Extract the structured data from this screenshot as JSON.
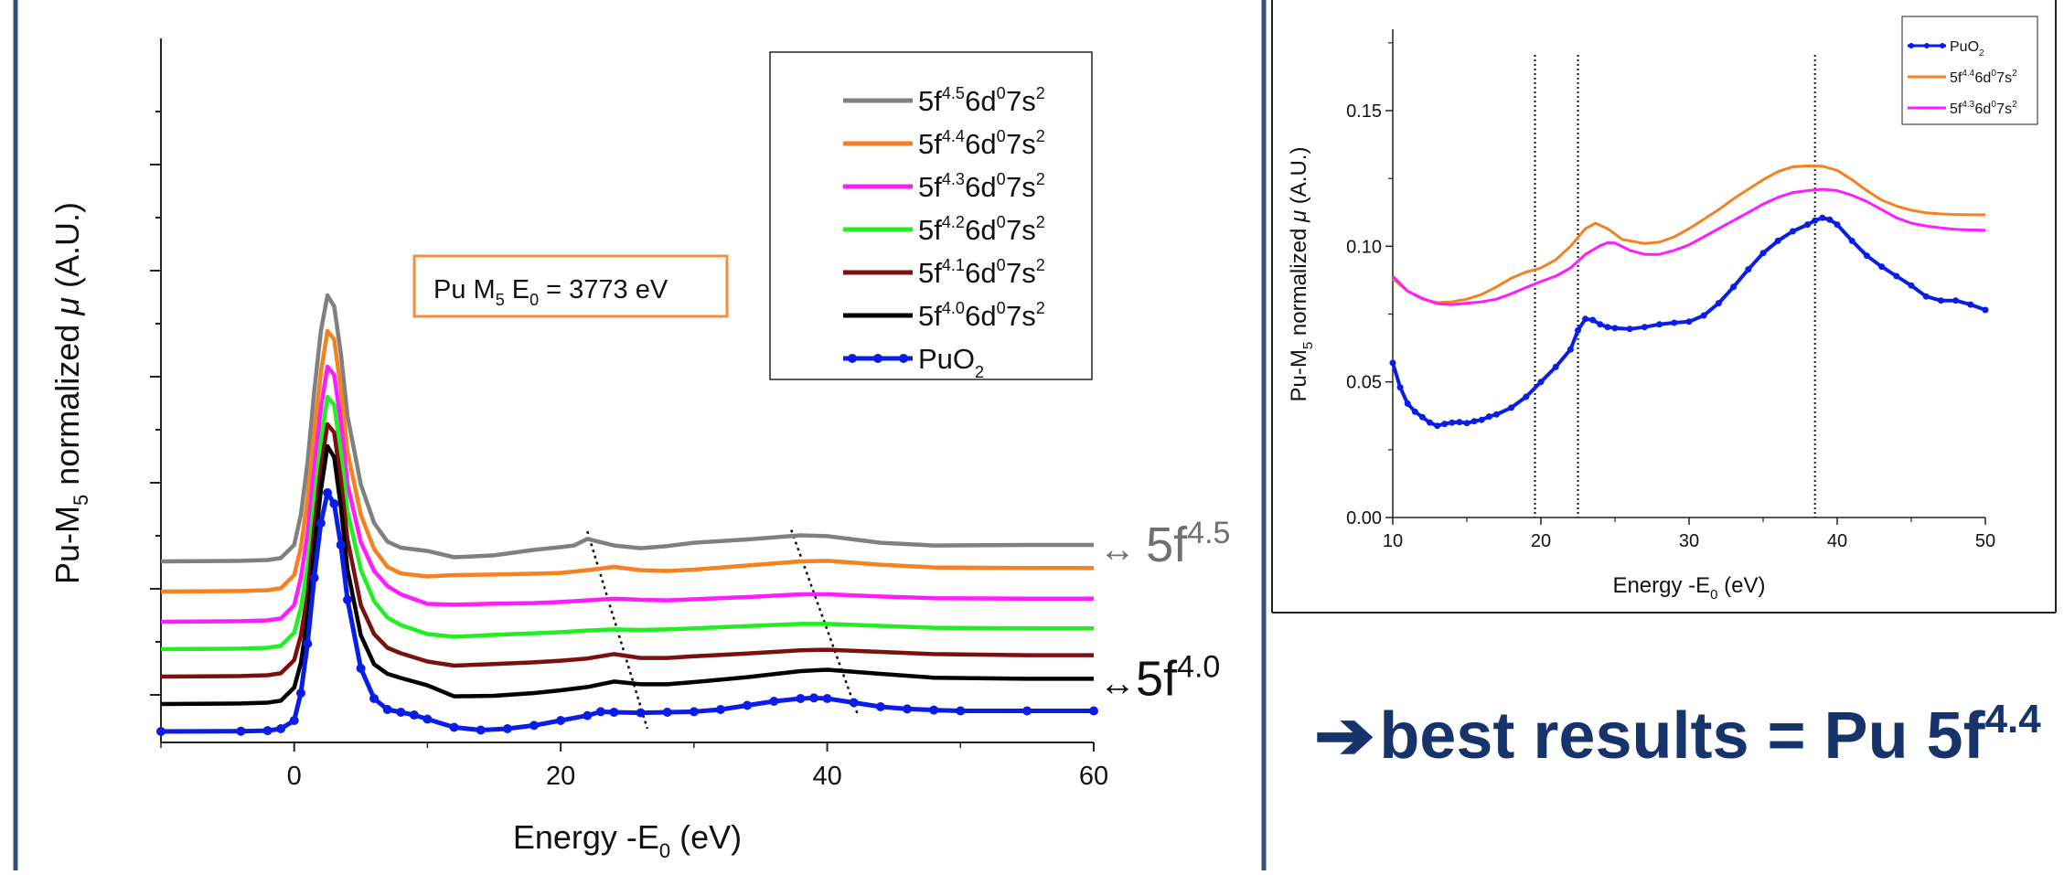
{
  "colors": {
    "frame": "#34507f",
    "accent_text": "#16336b",
    "label_box": "#f0903a"
  },
  "conclusion": {
    "arrow": "➔",
    "text": "best results = Pu 5f",
    "superscript": "4.4"
  },
  "chart_data": [
    {
      "type": "line",
      "title": "",
      "xlabel": "Energy -E0 (eV)",
      "ylabel": "Pu-M5 normalized μ (A.U.)",
      "xlim": [
        -10,
        60
      ],
      "xticks": [
        0,
        20,
        40,
        60
      ],
      "y_tick_labels": false,
      "legend_position": "top-right",
      "annotation_box": "Pu M5 E0 = 3773 eV",
      "series": [
        {
          "name": "5f4.5 6d0 7s2",
          "color": "#808080",
          "right_label": "↔ 5f4.5",
          "offset": 6.2,
          "x": [
            -10,
            -4,
            -2,
            -1,
            0,
            0.5,
            1,
            1.5,
            2,
            2.5,
            3,
            3.5,
            4,
            5,
            6,
            7,
            8,
            10,
            12,
            15,
            18,
            20,
            21,
            22,
            24,
            26,
            28,
            30,
            34,
            38,
            40,
            44,
            48,
            55,
            60
          ],
          "y": [
            0,
            0.02,
            0.05,
            0.12,
            0.6,
            1.7,
            3.6,
            6.2,
            8.4,
            9.7,
            9.3,
            7.6,
            5.3,
            2.8,
            1.4,
            0.72,
            0.5,
            0.38,
            0.15,
            0.22,
            0.42,
            0.52,
            0.58,
            0.82,
            0.58,
            0.48,
            0.56,
            0.68,
            0.8,
            0.95,
            0.92,
            0.68,
            0.58,
            0.6,
            0.6
          ]
        },
        {
          "name": "5f4.4 6d0 7s2",
          "color": "#f58220",
          "offset": 5.1,
          "x": [
            -10,
            -4,
            -2,
            -1,
            0,
            0.5,
            1,
            1.5,
            2,
            2.5,
            3,
            3.5,
            4,
            5,
            6,
            7,
            8,
            10,
            12,
            15,
            18,
            20,
            22,
            24,
            26,
            28,
            30,
            34,
            38,
            40,
            44,
            48,
            55,
            60
          ],
          "y": [
            0,
            0.02,
            0.05,
            0.12,
            0.6,
            1.6,
            3.4,
            5.8,
            8.0,
            9.5,
            9.2,
            7.4,
            5.1,
            2.8,
            1.55,
            0.9,
            0.66,
            0.55,
            0.6,
            0.62,
            0.65,
            0.68,
            0.78,
            0.9,
            0.78,
            0.75,
            0.8,
            0.95,
            1.1,
            1.12,
            0.98,
            0.88,
            0.86,
            0.86
          ]
        },
        {
          "name": "5f4.3 6d0 7s2",
          "color": "#ff1cff",
          "offset": 4.0,
          "x": [
            -10,
            -4,
            -2,
            -1,
            0,
            0.5,
            1,
            1.5,
            2,
            2.5,
            3,
            3.5,
            4,
            5,
            6,
            7,
            8,
            10,
            12,
            15,
            18,
            20,
            22,
            24,
            26,
            28,
            30,
            34,
            38,
            40,
            44,
            48,
            55,
            60
          ],
          "y": [
            0,
            0.02,
            0.05,
            0.12,
            0.6,
            1.6,
            3.2,
            5.6,
            7.8,
            9.3,
            9.0,
            7.3,
            5.0,
            2.9,
            1.85,
            1.3,
            1.0,
            0.65,
            0.62,
            0.66,
            0.68,
            0.72,
            0.78,
            0.84,
            0.8,
            0.78,
            0.82,
            0.9,
            1.0,
            1.0,
            0.92,
            0.86,
            0.84,
            0.84
          ]
        },
        {
          "name": "5f4.2 6d0 7s2",
          "color": "#22ee22",
          "offset": 3.0,
          "x": [
            -10,
            -4,
            -2,
            -1,
            0,
            0.5,
            1,
            1.5,
            2,
            2.5,
            3,
            3.5,
            4,
            5,
            6,
            7,
            8,
            10,
            12,
            15,
            18,
            20,
            22,
            24,
            26,
            28,
            30,
            34,
            38,
            40,
            44,
            48,
            55,
            60
          ],
          "y": [
            0,
            0.02,
            0.05,
            0.12,
            0.6,
            1.5,
            3.0,
            5.4,
            7.6,
            9.2,
            8.9,
            7.2,
            5.0,
            2.9,
            1.75,
            1.15,
            0.88,
            0.55,
            0.45,
            0.52,
            0.58,
            0.62,
            0.68,
            0.72,
            0.7,
            0.72,
            0.76,
            0.84,
            0.92,
            0.92,
            0.85,
            0.78,
            0.76,
            0.76
          ]
        },
        {
          "name": "5f4.1 6d0 7s2",
          "color": "#7a1010",
          "offset": 2.0,
          "x": [
            -10,
            -4,
            -2,
            -1,
            0,
            0.5,
            1,
            1.5,
            2,
            2.5,
            3,
            3.5,
            4,
            5,
            6,
            7,
            8,
            10,
            12,
            15,
            18,
            20,
            22,
            24,
            26,
            28,
            30,
            34,
            38,
            40,
            44,
            48,
            55,
            60
          ],
          "y": [
            0,
            0.02,
            0.05,
            0.12,
            0.6,
            1.5,
            3.0,
            5.4,
            7.6,
            9.2,
            8.9,
            7.2,
            5.0,
            2.6,
            1.55,
            1.05,
            0.85,
            0.55,
            0.4,
            0.46,
            0.52,
            0.58,
            0.66,
            0.82,
            0.68,
            0.68,
            0.74,
            0.84,
            0.96,
            0.98,
            0.9,
            0.82,
            0.78,
            0.78
          ]
        },
        {
          "name": "5f4.0 6d0 7s2",
          "color": "#000000",
          "right_label": "↔5f4.0",
          "offset": 1.0,
          "x": [
            -10,
            -4,
            -2,
            -1,
            0,
            0.5,
            1,
            1.5,
            2,
            2.5,
            3,
            3.5,
            4,
            5,
            6,
            7,
            8,
            10,
            12,
            15,
            18,
            20,
            22,
            24,
            26,
            28,
            30,
            34,
            38,
            40,
            44,
            48,
            55,
            60
          ],
          "y": [
            0,
            0.02,
            0.05,
            0.12,
            0.6,
            1.5,
            3.1,
            5.6,
            7.8,
            9.4,
            9.0,
            7.2,
            4.9,
            2.5,
            1.45,
            1.1,
            0.95,
            0.68,
            0.28,
            0.3,
            0.4,
            0.5,
            0.62,
            0.82,
            0.72,
            0.72,
            0.8,
            0.98,
            1.2,
            1.25,
            1.1,
            0.96,
            0.92,
            0.92
          ]
        },
        {
          "name": "PuO2",
          "color": "#0a1de8",
          "markers": true,
          "offset": 0.0,
          "x": [
            -10,
            -4,
            -2,
            -1,
            0,
            0.5,
            1,
            1.5,
            2,
            2.5,
            3,
            3.5,
            4,
            5,
            6,
            7,
            8,
            9,
            10,
            12,
            14,
            16,
            18,
            20,
            22,
            23,
            24,
            26,
            28,
            30,
            32,
            34,
            36,
            38,
            39,
            40,
            42,
            44,
            46,
            48,
            50,
            55,
            60
          ],
          "y": [
            0,
            0.01,
            0.03,
            0.1,
            0.4,
            1.4,
            3.2,
            5.6,
            7.6,
            8.7,
            8.3,
            6.8,
            4.8,
            2.3,
            1.2,
            0.8,
            0.7,
            0.6,
            0.45,
            0.15,
            0.05,
            0.1,
            0.22,
            0.4,
            0.58,
            0.72,
            0.7,
            0.68,
            0.7,
            0.72,
            0.8,
            0.95,
            1.1,
            1.2,
            1.22,
            1.2,
            1.05,
            0.9,
            0.82,
            0.78,
            0.75,
            0.75,
            0.75
          ]
        }
      ],
      "guide_lines": [
        {
          "from": [
            22,
            7.3
          ],
          "to": [
            26.5,
            0.1
          ]
        },
        {
          "from": [
            37.3,
            7.35
          ],
          "to": [
            42.3,
            0.6
          ]
        }
      ]
    },
    {
      "type": "line",
      "title": "",
      "xlabel": "Energy -E0 (eV)",
      "ylabel": "Pu-M5 normalized μ (A.U.)",
      "xlim": [
        10,
        50
      ],
      "ylim": [
        0.0,
        0.18
      ],
      "xticks": [
        10,
        20,
        30,
        40,
        50
      ],
      "yticks": [
        0.0,
        0.05,
        0.1,
        0.15
      ],
      "legend_position": "top-right",
      "vertical_lines": [
        19.6,
        22.5,
        38.5
      ],
      "series": [
        {
          "name": "PuO2",
          "color": "#0a1de8",
          "markers": true,
          "x": [
            10,
            10.5,
            11,
            11.5,
            12,
            12.5,
            13,
            13.5,
            14,
            14.5,
            15,
            15.5,
            16,
            16.5,
            17,
            18,
            19,
            20,
            21,
            22,
            22.5,
            23,
            23.5,
            24,
            24.5,
            25,
            26,
            27,
            28,
            29,
            30,
            31,
            32,
            33,
            34,
            35,
            36,
            37,
            38,
            38.5,
            39,
            39.5,
            40,
            41,
            42,
            43,
            44,
            45,
            46,
            47,
            48,
            49,
            50
          ],
          "y": [
            0.057,
            0.048,
            0.042,
            0.039,
            0.037,
            0.035,
            0.0338,
            0.0345,
            0.035,
            0.0352,
            0.0348,
            0.0355,
            0.036,
            0.0372,
            0.038,
            0.0405,
            0.0445,
            0.05,
            0.0555,
            0.062,
            0.069,
            0.0732,
            0.0728,
            0.0712,
            0.0702,
            0.0698,
            0.0695,
            0.0702,
            0.0712,
            0.0718,
            0.0722,
            0.0745,
            0.079,
            0.085,
            0.0915,
            0.0975,
            0.102,
            0.1055,
            0.108,
            0.1095,
            0.1105,
            0.1098,
            0.108,
            0.102,
            0.0965,
            0.0925,
            0.089,
            0.0855,
            0.0815,
            0.08,
            0.08,
            0.0785,
            0.0765
          ]
        },
        {
          "name": "5f4.4 6d0 7s2",
          "color": "#f58220",
          "x": [
            10,
            11,
            12,
            13,
            14,
            15,
            16,
            17,
            18,
            19,
            20,
            21,
            22,
            23,
            23.7,
            24.5,
            25.5,
            27,
            28,
            29,
            30,
            31,
            32,
            33,
            34,
            35,
            36,
            37,
            38,
            39,
            40,
            41,
            42,
            43,
            44,
            45,
            46,
            47,
            48,
            49,
            50
          ],
          "y": [
            0.088,
            0.0835,
            0.0805,
            0.0792,
            0.0795,
            0.0805,
            0.0822,
            0.085,
            0.0882,
            0.0905,
            0.092,
            0.095,
            0.1,
            0.1065,
            0.1085,
            0.1065,
            0.1025,
            0.101,
            0.1015,
            0.1035,
            0.1065,
            0.11,
            0.1135,
            0.1175,
            0.121,
            0.1245,
            0.1275,
            0.1293,
            0.1296,
            0.1295,
            0.128,
            0.1245,
            0.1205,
            0.117,
            0.1148,
            0.1133,
            0.1123,
            0.1119,
            0.1117,
            0.1116,
            0.1116
          ]
        },
        {
          "name": "5f4.3 6d0 7s2",
          "color": "#ff1cff",
          "x": [
            10,
            11,
            12,
            13,
            14,
            15,
            16,
            17,
            18,
            19,
            20,
            21,
            22,
            23,
            24,
            24.5,
            25,
            26,
            27,
            28,
            29,
            30,
            31,
            32,
            33,
            34,
            35,
            36,
            37,
            38,
            39,
            40,
            41,
            42,
            43,
            44,
            45,
            46,
            47,
            48,
            49,
            50
          ],
          "y": [
            0.089,
            0.0835,
            0.0808,
            0.0788,
            0.0785,
            0.079,
            0.0795,
            0.0805,
            0.0825,
            0.0848,
            0.087,
            0.089,
            0.092,
            0.097,
            0.1002,
            0.1013,
            0.1012,
            0.0985,
            0.097,
            0.097,
            0.0985,
            0.1005,
            0.1035,
            0.1065,
            0.1095,
            0.1125,
            0.1155,
            0.118,
            0.1198,
            0.1205,
            0.121,
            0.1205,
            0.1188,
            0.1165,
            0.1135,
            0.1105,
            0.1085,
            0.1075,
            0.1068,
            0.1062,
            0.106,
            0.1059
          ]
        }
      ]
    }
  ]
}
